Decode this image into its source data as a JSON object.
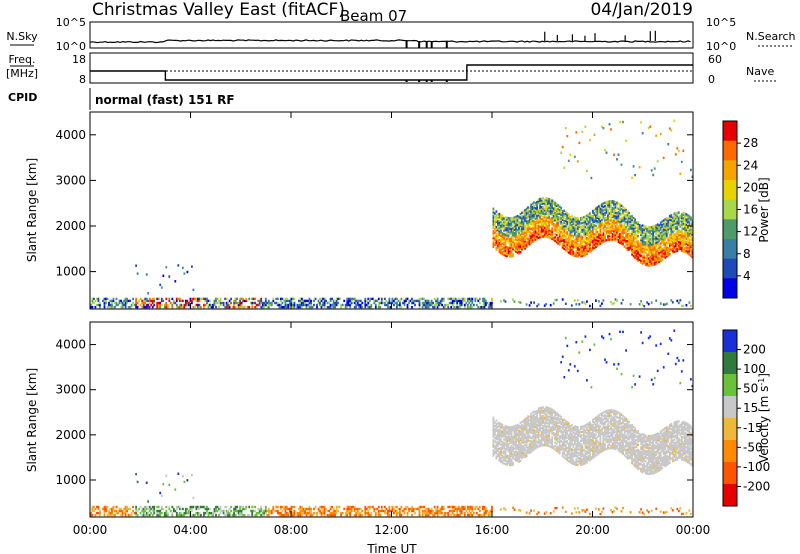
{
  "header": {
    "title": "Christmas Valley East (fitACF)",
    "beam": "Beam 07",
    "date": "04/Jan/2019"
  },
  "noise_panel": {
    "left_label": "N.Sky",
    "right_label": "N.Search",
    "left_ticks": [
      "10^5",
      "10^0"
    ],
    "right_ticks": [
      "10^5",
      "10^0"
    ]
  },
  "freq_panel": {
    "left_label_1": "Freq.",
    "left_label_2": "[MHz]",
    "right_label": "Nave",
    "left_ticks": [
      "18",
      "8"
    ],
    "right_ticks": [
      "60",
      "0"
    ]
  },
  "cpid": {
    "label": "CPID",
    "text": "normal (fast) 151 RF"
  },
  "x_ticks": [
    "00:00",
    "04:00",
    "08:00",
    "12:00",
    "16:00",
    "20:00",
    "00:00"
  ],
  "xlabel": "Time UT",
  "ylabel": "Slant Range [km]",
  "power_colorbar": {
    "label": "Power [dB]",
    "ticks": [
      "28",
      "24",
      "20",
      "16",
      "12",
      "8",
      "4"
    ],
    "colors": [
      "#e60000",
      "#ff6a00",
      "#f5a400",
      "#e8d200",
      "#a8d84a",
      "#4e9a6a",
      "#3a7ea8",
      "#1e4bb8",
      "#0000e6"
    ]
  },
  "velocity_colorbar": {
    "label": "Velocity [m s",
    "label_sup": "-1",
    "label_close": "]",
    "ticks": [
      "200",
      "100",
      "50",
      "15",
      "-15",
      "-50",
      "-100",
      "-200"
    ],
    "colors": [
      "#1a2fd6",
      "#2f7a3c",
      "#6ac23a",
      "#c8c8c8",
      "#f0b83a",
      "#ff8a00",
      "#ff5500",
      "#e60000"
    ]
  },
  "chart_data": [
    {
      "type": "heatmap",
      "title": "Power [dB]",
      "xlabel": "Time UT",
      "ylabel": "Slant Range [km]",
      "x_ticks": [
        "00:00",
        "04:00",
        "08:00",
        "12:00",
        "16:00",
        "20:00",
        "00:00"
      ],
      "y_ticks": [
        1000,
        2000,
        3000,
        4000
      ],
      "xlim_hours": [
        0,
        24
      ],
      "ylim": [
        180,
        4500
      ],
      "colorbar_ticks": [
        4,
        8,
        12,
        16,
        20,
        24,
        28
      ],
      "echo_regions": [
        {
          "t_start": 0,
          "t_end": 16,
          "range": [
            200,
            400
          ],
          "level": "low-moderate"
        },
        {
          "t_start": 1.5,
          "t_end": 4.5,
          "range": [
            200,
            600
          ],
          "level": "high"
        },
        {
          "t_start": 16,
          "t_end": 24,
          "range": [
            1500,
            2400
          ],
          "level": "high"
        },
        {
          "t_start": 18.5,
          "t_end": 21.5,
          "range": [
            3000,
            4000
          ],
          "level": "moderate"
        }
      ]
    },
    {
      "type": "heatmap",
      "title": "Velocity [m s^-1]",
      "xlabel": "Time UT",
      "ylabel": "Slant Range [km]",
      "x_ticks": [
        "00:00",
        "04:00",
        "08:00",
        "12:00",
        "16:00",
        "20:00",
        "00:00"
      ],
      "y_ticks": [
        1000,
        2000,
        3000,
        4000
      ],
      "xlim_hours": [
        0,
        24
      ],
      "ylim": [
        180,
        4500
      ],
      "colorbar_ticks": [
        200,
        100,
        50,
        15,
        -15,
        -50,
        -100,
        -200
      ],
      "echo_regions": [
        {
          "t_start": 0,
          "t_end": 16,
          "range": [
            200,
            400
          ],
          "velocity": "-50 to -100"
        },
        {
          "t_start": 2,
          "t_end": 7,
          "range": [
            200,
            700
          ],
          "velocity": "15 to 100"
        },
        {
          "t_start": 16,
          "t_end": 24,
          "range": [
            1500,
            2400
          ],
          "velocity": "-15 to 15"
        },
        {
          "t_start": 19,
          "t_end": 24,
          "range": [
            3000,
            4500
          ],
          "velocity": "above 200"
        }
      ]
    }
  ]
}
